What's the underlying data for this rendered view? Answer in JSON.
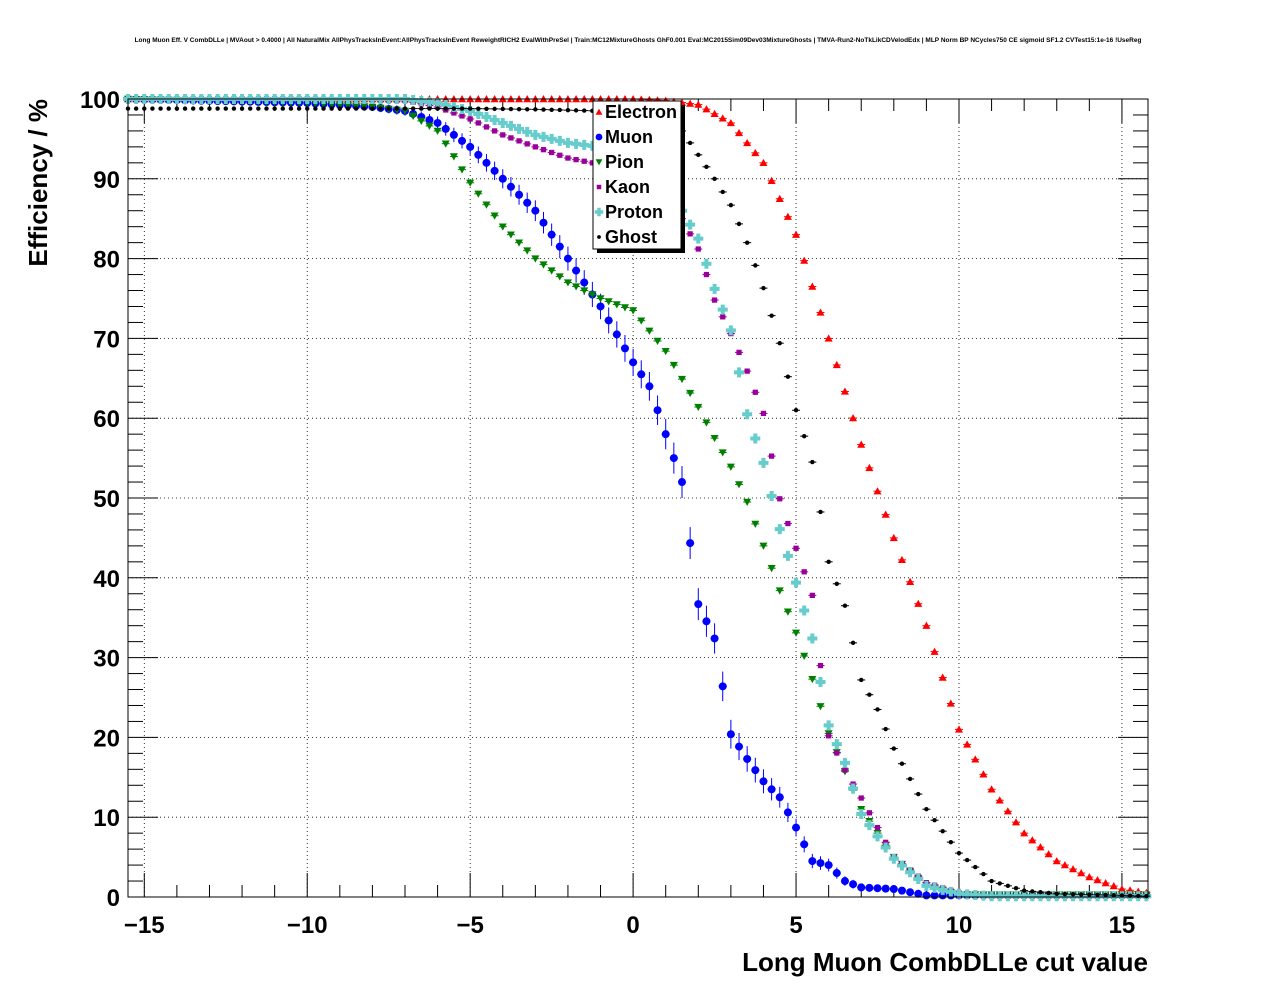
{
  "chart_data": {
    "type": "scatter",
    "title": "Long Muon Eff. V CombDLLe | MVAout > 0.4000 | All NaturalMix AllPhysTracksInEvent:AllPhysTracksInEvent ReweightRICH2 EvalWithPreSel | Train:MC12MixtureGhosts GhF0.001 Eval:MC2015Sim09Dev03MixtureGhosts | TMVA-Run2-NoTkLikCDVelodEdx | MLP Norm BP NCycles750 CE sigmoid SF1.2 CVTest15:1e-16 !UseReg",
    "xlabel": "Long Muon CombDLLe cut value",
    "ylabel": "Efficiency / %",
    "xlim": [
      -15.5,
      15.8
    ],
    "ylim": [
      0,
      100
    ],
    "x_ticks": [
      -15,
      -10,
      -5,
      0,
      5,
      10,
      15
    ],
    "x_tick_labels": [
      "−15",
      "−10",
      "−5",
      "0",
      "5",
      "10",
      "15"
    ],
    "y_ticks": [
      0,
      10,
      20,
      30,
      40,
      50,
      60,
      70,
      80,
      90,
      100
    ],
    "y_tick_labels": [
      "0",
      "10",
      "20",
      "30",
      "40",
      "50",
      "60",
      "70",
      "80",
      "90",
      "100"
    ],
    "grid": true,
    "legend_position": "top-center",
    "series": [
      {
        "name": "Electron",
        "color": "#ff0000",
        "marker": "triangle-up",
        "x": [
          -15.5,
          -10,
          -5,
          0,
          1,
          2,
          3,
          4,
          5,
          6,
          7,
          8,
          9,
          10,
          11,
          12,
          13,
          14,
          15,
          15.8
        ],
        "y": [
          100,
          100,
          100,
          100,
          99.8,
          99.3,
          97,
          92,
          83,
          70,
          56.7,
          45,
          34,
          21,
          13.5,
          8,
          4.5,
          2.5,
          1,
          0.5
        ]
      },
      {
        "name": "Muon",
        "color": "#0000ff",
        "marker": "circle",
        "x": [
          -15.5,
          -10,
          -8,
          -7,
          -6,
          -5,
          -4,
          -3,
          -2,
          -1,
          0,
          0.5,
          1,
          1.5,
          2,
          2.5,
          3,
          3.5,
          4,
          4.5,
          5,
          5.5,
          6,
          6.5,
          7,
          8,
          9
        ],
        "y": [
          100,
          99.5,
          99,
          98.5,
          97,
          94,
          90,
          86,
          80,
          74,
          67,
          64,
          58,
          52,
          36.7,
          32.4,
          20.4,
          17.3,
          14.5,
          12.5,
          8.7,
          4.5,
          4,
          2,
          1.2,
          1,
          0.2
        ],
        "yerr": [
          0.2,
          0.4,
          0.5,
          0.6,
          0.8,
          1.0,
          1.2,
          1.3,
          1.5,
          1.6,
          1.7,
          1.8,
          1.9,
          2.0,
          2.0,
          1.9,
          1.8,
          1.6,
          1.5,
          1.3,
          1.1,
          0.9,
          0.8,
          0.6,
          0.5,
          0.4,
          0.2
        ]
      },
      {
        "name": "Pion",
        "color": "#008000",
        "marker": "triangle-down",
        "x": [
          -15.5,
          -10,
          -8,
          -7,
          -6,
          -5.5,
          -5,
          -4,
          -3,
          -2,
          -1,
          0,
          1,
          2,
          2.5,
          3,
          3.5,
          4,
          4.5,
          5,
          5.5,
          6,
          7,
          8,
          9,
          10
        ],
        "y": [
          100,
          99.5,
          99,
          98.5,
          96,
          92.8,
          89.5,
          84,
          80,
          77,
          75,
          73.5,
          68.4,
          61.4,
          57.5,
          53.9,
          49.5,
          44,
          38.4,
          33.1,
          27.3,
          20.5,
          11,
          5,
          1.5,
          0.3
        ]
      },
      {
        "name": "Kaon",
        "color": "#990099",
        "marker": "square",
        "x": [
          -15.5,
          -10,
          -7,
          -6,
          -5,
          -4,
          -3,
          -2,
          -1,
          0,
          1,
          1.5,
          2,
          2.5,
          3,
          3.5,
          4,
          4.5,
          5,
          5.5,
          6,
          6.5,
          7,
          8,
          9,
          10,
          11
        ],
        "y": [
          100,
          100,
          99.8,
          99,
          97.5,
          95.5,
          94,
          92.6,
          91.8,
          91,
          87.8,
          85,
          81.2,
          74.8,
          70.6,
          65.9,
          60.6,
          49.9,
          43.7,
          37.8,
          20.2,
          15.9,
          12.4,
          5,
          1.8,
          0.5,
          0.1
        ]
      },
      {
        "name": "Proton",
        "color": "#66cccc",
        "marker": "cross",
        "x": [
          -15.5,
          -10,
          -7,
          -6,
          -5,
          -4,
          -3,
          -2,
          -1,
          0,
          1,
          1.5,
          2,
          2.5,
          3,
          3.5,
          4,
          4.5,
          5,
          5.5,
          6,
          6.5,
          7,
          8,
          9,
          10,
          11
        ],
        "y": [
          100,
          100,
          100,
          99.5,
          98.5,
          97,
          95.5,
          94.5,
          94,
          92.8,
          88.2,
          86,
          82.5,
          76.2,
          71,
          60.5,
          54.4,
          46.1,
          39.4,
          32.4,
          21.5,
          16.8,
          10.4,
          4.8,
          1.4,
          0.4,
          0.1
        ]
      },
      {
        "name": "Ghost",
        "color": "#000000",
        "marker": "dot",
        "x": [
          -15.5,
          -10,
          -5,
          -3,
          -2,
          -1,
          0,
          0.5,
          1,
          1.5,
          2,
          2.5,
          3,
          3.5,
          4,
          4.5,
          5,
          5.5,
          6,
          6.5,
          7,
          7.5,
          8,
          9,
          10,
          11,
          12,
          13,
          14,
          15,
          15.8
        ],
        "y": [
          98.8,
          98.8,
          98.8,
          98.7,
          98.6,
          98.5,
          98.3,
          97.8,
          97,
          96,
          93,
          90,
          86.7,
          82,
          76.3,
          69.4,
          61,
          54.5,
          42,
          36.5,
          27.2,
          23.5,
          18.6,
          11,
          5.5,
          2,
          0.8,
          0.4,
          0.3,
          0.2,
          0.1
        ]
      }
    ]
  }
}
